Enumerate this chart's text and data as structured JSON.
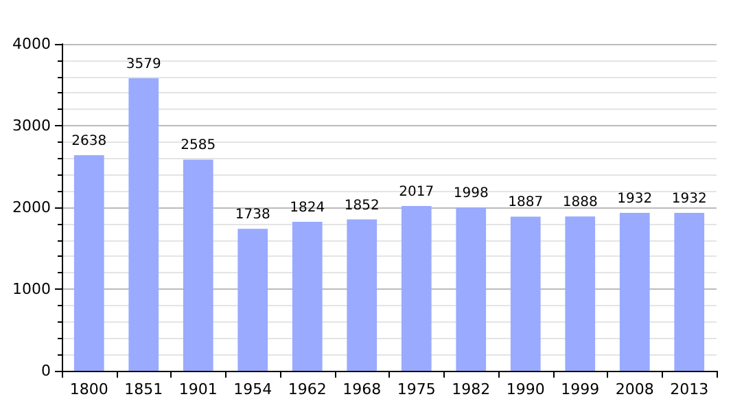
{
  "chart_data": {
    "type": "bar",
    "categories": [
      "1800",
      "1851",
      "1901",
      "1954",
      "1962",
      "1968",
      "1975",
      "1982",
      "1990",
      "1999",
      "2008",
      "2013"
    ],
    "values": [
      2638,
      3579,
      2585,
      1738,
      1824,
      1852,
      2017,
      1998,
      1887,
      1888,
      1932,
      1932
    ],
    "color": "#99aaff",
    "ylim": [
      0,
      4000
    ],
    "yticks": [
      0,
      1000,
      2000,
      3000,
      4000
    ],
    "grid": "y",
    "data_labels": true
  }
}
